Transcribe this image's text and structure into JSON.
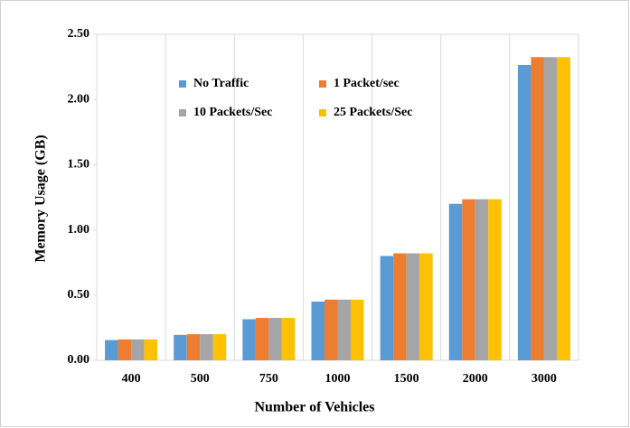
{
  "chart_data": {
    "type": "bar",
    "x_label": "Number of Vehicles",
    "y_label": "Memory Usage  (GB)",
    "categories": [
      "400",
      "500",
      "750",
      "1000",
      "1500",
      "2000",
      "3000"
    ],
    "series": [
      {
        "name": "No Traffic",
        "color": "#5b9bd5",
        "values": [
          0.155,
          0.195,
          0.315,
          0.45,
          0.8,
          1.2,
          2.265
        ]
      },
      {
        "name": "1 Packet/sec",
        "color": "#ed7d31",
        "values": [
          0.16,
          0.2,
          0.325,
          0.465,
          0.82,
          1.235,
          2.325
        ]
      },
      {
        "name": "10 Packets/Sec",
        "color": "#a5a5a5",
        "values": [
          0.16,
          0.2,
          0.325,
          0.465,
          0.82,
          1.235,
          2.325
        ]
      },
      {
        "name": "25 Packets/Sec",
        "color": "#ffc000",
        "values": [
          0.16,
          0.2,
          0.325,
          0.465,
          0.82,
          1.235,
          2.325
        ]
      }
    ],
    "ylim": [
      0,
      2.5
    ],
    "yticks": [
      {
        "value": 0,
        "label": "0.00"
      },
      {
        "value": 0.5,
        "label": "0.50"
      },
      {
        "value": 1,
        "label": "1.00"
      },
      {
        "value": 1.5,
        "label": "1.50"
      },
      {
        "value": 2,
        "label": "2.00"
      },
      {
        "value": 2.5,
        "label": "2.50"
      }
    ],
    "legend": "upper left"
  }
}
